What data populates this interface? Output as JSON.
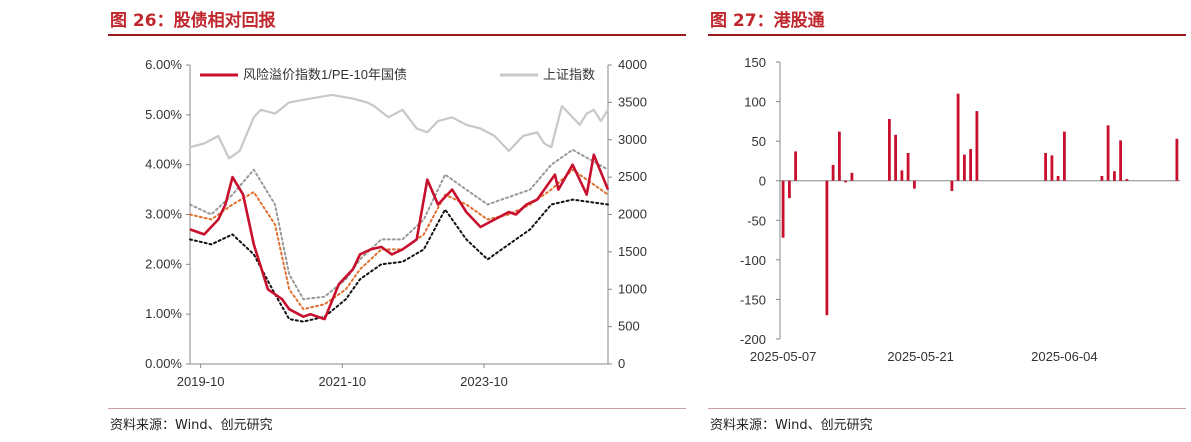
{
  "left": {
    "title": "图 26：股债相对回报",
    "source": "资料来源：Wind、创元研究",
    "chart_data": {
      "type": "line",
      "x_ticks": [
        "2019-10",
        "2021-10",
        "2023-10"
      ],
      "y_left_ticks": [
        "0.00%",
        "1.00%",
        "2.00%",
        "3.00%",
        "4.00%",
        "5.00%",
        "6.00%"
      ],
      "y_left_range": [
        0,
        6
      ],
      "y_right_ticks": [
        "0",
        "500",
        "1000",
        "1500",
        "2000",
        "2500",
        "3000",
        "3500",
        "4000"
      ],
      "y_right_range": [
        0,
        4000
      ],
      "legend": [
        "风险溢价指数1/PE-10年国债",
        "上证指数"
      ],
      "series": [
        {
          "name": "风险溢价指数1/PE-10年国债",
          "axis": "left",
          "color": "#c8102e",
          "x": [
            2019.6,
            2019.8,
            2020.0,
            2020.1,
            2020.2,
            2020.35,
            2020.5,
            2020.7,
            2020.9,
            2021.0,
            2021.2,
            2021.3,
            2021.5,
            2021.7,
            2021.9,
            2022.0,
            2022.15,
            2022.3,
            2022.45,
            2022.6,
            2022.8,
            2022.95,
            2023.1,
            2023.3,
            2023.5,
            2023.7,
            2023.9,
            2024.1,
            2024.2,
            2024.35,
            2024.5,
            2024.65,
            2024.75,
            2024.8,
            2025.0,
            2025.2,
            2025.3,
            2025.5
          ],
          "values": [
            2.7,
            2.6,
            2.9,
            3.2,
            3.75,
            3.4,
            2.4,
            1.5,
            1.3,
            1.1,
            0.95,
            1.0,
            0.9,
            1.6,
            1.9,
            2.2,
            2.3,
            2.35,
            2.2,
            2.3,
            2.5,
            3.7,
            3.2,
            3.5,
            3.05,
            2.75,
            2.9,
            3.05,
            3.0,
            3.2,
            3.3,
            3.6,
            3.8,
            3.5,
            4.0,
            3.4,
            4.2,
            3.5
          ]
        },
        {
          "name": "上证指数",
          "axis": "right",
          "color": "#c8c8c8",
          "x": [
            2019.6,
            2019.8,
            2020.0,
            2020.15,
            2020.3,
            2020.5,
            2020.6,
            2020.8,
            2021.0,
            2021.3,
            2021.6,
            2021.9,
            2022.1,
            2022.2,
            2022.4,
            2022.6,
            2022.8,
            2022.95,
            2023.1,
            2023.3,
            2023.5,
            2023.7,
            2023.9,
            2024.1,
            2024.3,
            2024.5,
            2024.6,
            2024.7,
            2024.85,
            2025.0,
            2025.1,
            2025.2,
            2025.3,
            2025.4,
            2025.5
          ],
          "values": [
            2900,
            2950,
            3050,
            2750,
            2850,
            3300,
            3400,
            3350,
            3500,
            3550,
            3600,
            3550,
            3500,
            3450,
            3300,
            3400,
            3150,
            3100,
            3250,
            3300,
            3200,
            3150,
            3050,
            2850,
            3050,
            3100,
            2950,
            2900,
            3450,
            3300,
            3200,
            3350,
            3400,
            3250,
            3400
          ]
        },
        {
          "name": "",
          "axis": "left",
          "color": "#e07030",
          "style": "dotted",
          "x": [
            2019.6,
            2019.9,
            2020.2,
            2020.5,
            2020.8,
            2021.0,
            2021.2,
            2021.5,
            2021.8,
            2022.0,
            2022.3,
            2022.6,
            2022.9,
            2023.2,
            2023.5,
            2023.8,
            2024.1,
            2024.4,
            2024.7,
            2025.0,
            2025.5
          ],
          "values": [
            3.0,
            2.9,
            3.2,
            3.45,
            2.8,
            1.5,
            1.1,
            1.2,
            1.5,
            1.9,
            2.3,
            2.3,
            2.6,
            3.4,
            3.2,
            2.9,
            3.0,
            3.2,
            3.5,
            3.9,
            3.4
          ]
        },
        {
          "name": "",
          "axis": "left",
          "color": "#999999",
          "style": "dotted",
          "x": [
            2019.6,
            2019.9,
            2020.2,
            2020.5,
            2020.8,
            2021.0,
            2021.2,
            2021.5,
            2021.8,
            2022.0,
            2022.3,
            2022.6,
            2022.9,
            2023.2,
            2023.5,
            2023.8,
            2024.1,
            2024.4,
            2024.7,
            2025.0,
            2025.5
          ],
          "values": [
            3.2,
            3.0,
            3.4,
            3.9,
            3.2,
            1.8,
            1.3,
            1.35,
            1.7,
            2.1,
            2.5,
            2.5,
            2.9,
            3.8,
            3.5,
            3.2,
            3.35,
            3.5,
            4.0,
            4.3,
            3.9
          ]
        },
        {
          "name": "",
          "axis": "left",
          "color": "#111111",
          "style": "dotted",
          "x": [
            2019.6,
            2019.9,
            2020.2,
            2020.5,
            2020.8,
            2021.0,
            2021.2,
            2021.5,
            2021.8,
            2022.0,
            2022.3,
            2022.6,
            2022.9,
            2023.2,
            2023.5,
            2023.8,
            2024.1,
            2024.4,
            2024.7,
            2025.0,
            2025.5
          ],
          "values": [
            2.5,
            2.4,
            2.6,
            2.2,
            1.4,
            0.9,
            0.85,
            0.95,
            1.3,
            1.7,
            2.0,
            2.05,
            2.3,
            3.1,
            2.5,
            2.1,
            2.4,
            2.7,
            3.2,
            3.3,
            3.2
          ]
        }
      ]
    }
  },
  "right": {
    "title": "图 27：港股通",
    "source": "资料来源：Wind、创元研究",
    "chart_data": {
      "type": "bar",
      "color": "#c8102e",
      "x_ticks": [
        "2025-05-07",
        "2025-05-21",
        "2025-06-04"
      ],
      "y_ticks": [
        "150",
        "100",
        "50",
        "0",
        "-50",
        "-100",
        "-150",
        "-200"
      ],
      "ylim": [
        -200,
        150
      ],
      "values": [
        -72,
        -22,
        37,
        0,
        0,
        0,
        0,
        -170,
        20,
        62,
        -2,
        10,
        0,
        0,
        0,
        0,
        0,
        78,
        58,
        13,
        35,
        -10,
        0,
        0,
        0,
        0,
        0,
        -13,
        110,
        33,
        40,
        88,
        0,
        0,
        0,
        0,
        0,
        0,
        0,
        0,
        0,
        0,
        35,
        32,
        6,
        62,
        0,
        0,
        0,
        0,
        0,
        6,
        70,
        12,
        51,
        2,
        0,
        0,
        0,
        0,
        0,
        0,
        0,
        53
      ]
    }
  }
}
